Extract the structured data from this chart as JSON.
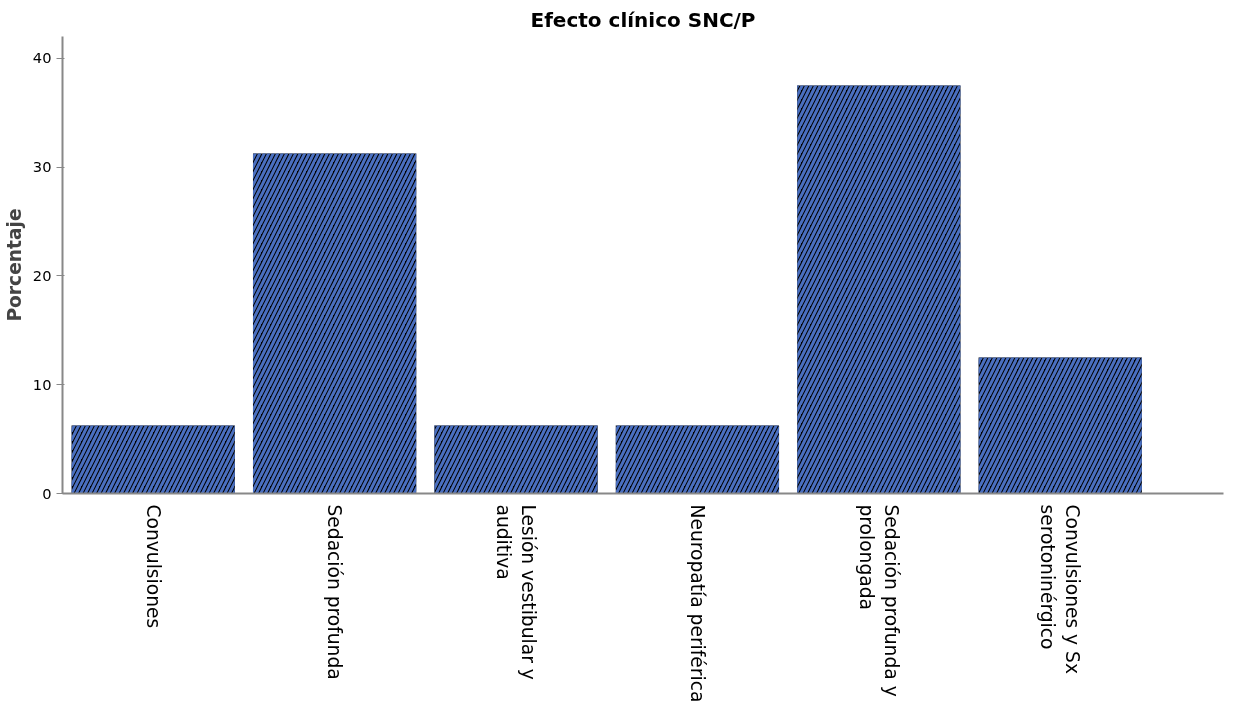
{
  "chart_data": {
    "type": "bar",
    "title": "Efecto clínico SNC/P",
    "ylabel": "Porcentaje",
    "categories": [
      "Convulsiones",
      "Sedación profunda",
      "Lesión vestibular y auditiva",
      "Neuropatía periférica",
      "Sedación profunda y prolongada",
      "Convulsiones y Sx serotoninérgico"
    ],
    "values": [
      6.25,
      31.25,
      6.25,
      6.25,
      37.5,
      12.5
    ],
    "color": "#4a6fc0",
    "ylim": [
      0,
      42
    ],
    "yticks": [
      0,
      10,
      20,
      30,
      40
    ],
    "grid": false
  }
}
